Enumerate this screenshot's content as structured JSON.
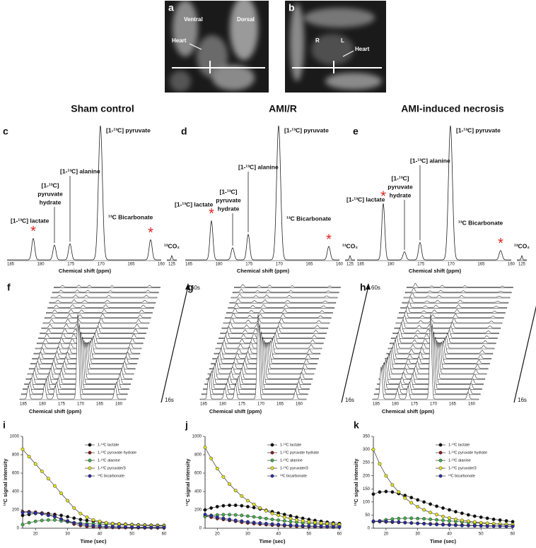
{
  "images": [
    {
      "letter": "a",
      "labels": [
        "Ventral",
        "Dorsal",
        "Heart"
      ]
    },
    {
      "letter": "b",
      "labels": [
        "R",
        "L",
        "Heart"
      ]
    }
  ],
  "spectra_axis": {
    "ticks": [
      "185",
      "180",
      "175",
      "170",
      "165",
      "160",
      "125"
    ],
    "label": "Chemical shift (ppm)"
  },
  "spectra": [
    {
      "letter": "c",
      "title": "Sham control",
      "pyruvate": "[1-¹³C] pyruvate",
      "alanine": "[1-¹³C] alanine",
      "hydrate": [
        "[1-¹³C]",
        "pyruvate",
        "hydrate"
      ],
      "lactate": "[1-¹³C] lactate",
      "bicarbonate": "¹³C Bicarbonate",
      "co2": "¹³CO₂"
    },
    {
      "letter": "d",
      "title": "AMI/R",
      "pyruvate": "[1-¹³C] pyruvate",
      "alanine": "[1-¹³C] alanine",
      "hydrate": [
        "[1-¹³C]",
        "pyruvate",
        "hydrate"
      ],
      "lactate": "[1-¹³C] lactate",
      "bicarbonate": "¹³C Bicarbonate",
      "co2": "¹³CO₂"
    },
    {
      "letter": "e",
      "title": "AMI-induced necrosis",
      "pyruvate": "[1-¹³C] pyruvate",
      "alanine": "[1-¹³C] alanine",
      "hydrate": [
        "[1-¹³C]",
        "pyruvate",
        "hydrate"
      ],
      "lactate": "[1-¹³C] lactate",
      "bicarbonate": "¹³C Bicarbonate",
      "co2": "¹³CO₂"
    }
  ],
  "stacks": [
    {
      "letter": "f",
      "start": "16s",
      "end": "60s"
    },
    {
      "letter": "g",
      "start": "16s",
      "end": "60s"
    },
    {
      "letter": "h",
      "start": "16s",
      "end": "60s"
    }
  ],
  "chart_data": [
    {
      "type": "line",
      "letter": "i",
      "xlabel": "Time (sec)",
      "ylabel": "¹³C signal intensity",
      "x": [
        16,
        18,
        20,
        22,
        24,
        26,
        28,
        30,
        32,
        34,
        36,
        38,
        40,
        42,
        44,
        46,
        48,
        50,
        52,
        54,
        56,
        58,
        60
      ],
      "xlim": [
        16,
        60
      ],
      "xticks": [
        20,
        30,
        40,
        50,
        60
      ],
      "ylim": [
        0,
        1000
      ],
      "yticks": [
        0,
        200,
        400,
        600,
        800,
        1000
      ],
      "series": [
        {
          "name": "1-¹³C lactate",
          "color": "#111111",
          "values": [
            140,
            150,
            160,
            165,
            160,
            150,
            140,
            125,
            110,
            95,
            85,
            75,
            65,
            58,
            52,
            48,
            44,
            40,
            37,
            35,
            33,
            31,
            30
          ]
        },
        {
          "name": "1-¹³C pyruvate hydrate",
          "color": "#8b1a1a",
          "values": [
            180,
            180,
            175,
            165,
            150,
            130,
            100,
            70,
            45,
            30,
            20,
            15,
            12,
            10,
            8,
            7,
            6,
            5,
            5,
            4,
            4,
            4,
            4
          ]
        },
        {
          "name": "1-¹³C alanine",
          "color": "#3cb043",
          "values": [
            40,
            60,
            75,
            85,
            90,
            90,
            80,
            70,
            60,
            55,
            50,
            48,
            45,
            42,
            40,
            38,
            36,
            35,
            34,
            33,
            32,
            31,
            30
          ]
        },
        {
          "name": "1-¹³C pyruvate/3",
          "color": "#e2e21a",
          "values": [
            860,
            780,
            700,
            620,
            540,
            460,
            380,
            300,
            220,
            160,
            120,
            90,
            75,
            60,
            50,
            45,
            40,
            35,
            32,
            30,
            28,
            26,
            25
          ]
        },
        {
          "name": "¹³C bicarbonate",
          "color": "#2a2ab0",
          "values": [
            170,
            170,
            165,
            155,
            140,
            125,
            100,
            80,
            60,
            45,
            35,
            28,
            24,
            20,
            18,
            16,
            14,
            13,
            12,
            11,
            10,
            10,
            10
          ]
        }
      ]
    },
    {
      "type": "line",
      "letter": "j",
      "xlabel": "Time (sec)",
      "ylabel": "¹³C signal intensity",
      "x": [
        16,
        18,
        20,
        22,
        24,
        26,
        28,
        30,
        32,
        34,
        36,
        38,
        40,
        42,
        44,
        46,
        48,
        50,
        52,
        54,
        56,
        58,
        60
      ],
      "xlim": [
        16,
        60
      ],
      "xticks": [
        20,
        30,
        40,
        50,
        60
      ],
      "ylim": [
        0,
        1000
      ],
      "yticks": [
        0,
        200,
        400,
        600,
        800,
        1000
      ],
      "series": [
        {
          "name": "1-¹³C lactate",
          "color": "#111111",
          "values": [
            200,
            220,
            235,
            245,
            250,
            250,
            245,
            235,
            225,
            210,
            195,
            180,
            165,
            150,
            135,
            120,
            108,
            96,
            85,
            75,
            66,
            58,
            52
          ]
        },
        {
          "name": "1-¹³C pyruvate hydrate",
          "color": "#8b1a1a",
          "values": [
            130,
            120,
            105,
            95,
            85,
            75,
            65,
            57,
            50,
            44,
            39,
            34,
            30,
            27,
            24,
            21,
            19,
            17,
            15,
            14,
            13,
            12,
            11
          ]
        },
        {
          "name": "1-¹³C alanine",
          "color": "#3cb043",
          "values": [
            130,
            140,
            145,
            148,
            148,
            145,
            140,
            132,
            124,
            115,
            105,
            96,
            88,
            80,
            72,
            65,
            58,
            52,
            47,
            42,
            38,
            34,
            30
          ]
        },
        {
          "name": "1-¹³C pyruvate/3",
          "color": "#e2e21a",
          "values": [
            880,
            760,
            650,
            560,
            480,
            410,
            350,
            300,
            260,
            220,
            190,
            160,
            140,
            120,
            105,
            90,
            80,
            70,
            62,
            55,
            50,
            45,
            40
          ]
        },
        {
          "name": "¹³C bicarbonate",
          "color": "#2a2ab0",
          "values": [
            150,
            135,
            120,
            108,
            97,
            87,
            78,
            70,
            63,
            57,
            51,
            46,
            42,
            38,
            34,
            31,
            28,
            25,
            23,
            21,
            19,
            17,
            15
          ]
        }
      ]
    },
    {
      "type": "line",
      "letter": "k",
      "xlabel": "Time (sec)",
      "ylabel": "¹³C signal intensity",
      "x": [
        16,
        18,
        20,
        22,
        24,
        26,
        28,
        30,
        32,
        34,
        36,
        38,
        40,
        42,
        44,
        46,
        48,
        50,
        52,
        54,
        56,
        58,
        60
      ],
      "xlim": [
        16,
        60
      ],
      "xticks": [
        20,
        30,
        40,
        50,
        60
      ],
      "ylim": [
        0,
        350
      ],
      "yticks": [
        0,
        50,
        100,
        150,
        200,
        250,
        300,
        350
      ],
      "series": [
        {
          "name": "1-¹³C lactate",
          "color": "#111111",
          "values": [
            130,
            138,
            140,
            138,
            132,
            125,
            117,
            108,
            100,
            92,
            84,
            77,
            70,
            63,
            57,
            51,
            46,
            42,
            38,
            34,
            31,
            28,
            25
          ]
        },
        {
          "name": "1-¹³C pyruvate hydrate",
          "color": "#8b1a1a",
          "values": [
            25,
            25,
            24,
            23,
            22,
            21,
            20,
            19,
            18,
            17,
            16,
            15,
            14,
            13,
            12,
            11,
            11,
            10,
            10,
            9,
            9,
            9,
            8
          ]
        },
        {
          "name": "1-¹³C alanine",
          "color": "#3cb043",
          "values": [
            25,
            28,
            32,
            35,
            37,
            38,
            38,
            37,
            36,
            34,
            32,
            30,
            28,
            26,
            24,
            22,
            20,
            19,
            18,
            17,
            16,
            15,
            14
          ]
        },
        {
          "name": "1-¹³C pyruvate/3",
          "color": "#e2e21a",
          "values": [
            300,
            245,
            200,
            165,
            138,
            115,
            97,
            82,
            70,
            60,
            52,
            45,
            39,
            34,
            30,
            27,
            24,
            21,
            19,
            17,
            16,
            15,
            14
          ]
        },
        {
          "name": "¹³C bicarbonate",
          "color": "#2a2ab0",
          "values": [
            27,
            27,
            26,
            25,
            24,
            22,
            20,
            18,
            17,
            15,
            14,
            13,
            12,
            11,
            10,
            10,
            9,
            9,
            8,
            8,
            8,
            7,
            7
          ]
        }
      ]
    }
  ]
}
